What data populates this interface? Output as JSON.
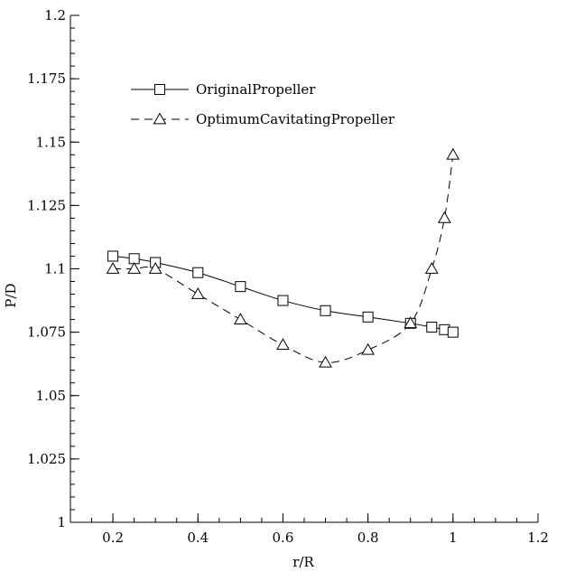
{
  "chart_data": {
    "type": "line",
    "title": "",
    "xlabel": "r/R",
    "ylabel": "P/D",
    "xlim": [
      0.1,
      1.2
    ],
    "ylim": [
      1.0,
      1.2
    ],
    "x_ticks": [
      "0.2",
      "0.4",
      "0.6",
      "0.8",
      "1",
      "1.2"
    ],
    "y_ticks": [
      "1",
      "1.025",
      "1.05",
      "1.075",
      "1.1",
      "1.125",
      "1.15",
      "1.175",
      "1.2"
    ],
    "grid": false,
    "legend_position": "top-left",
    "series": [
      {
        "name": "OriginalPropeller",
        "line_style": "solid",
        "marker": "square",
        "x": [
          0.2,
          0.25,
          0.3,
          0.4,
          0.5,
          0.6,
          0.7,
          0.8,
          0.9,
          0.95,
          0.98,
          1.0
        ],
        "y": [
          1.105,
          1.104,
          1.1025,
          1.0985,
          1.093,
          1.0875,
          1.0835,
          1.081,
          1.0785,
          1.077,
          1.076,
          1.075
        ]
      },
      {
        "name": "OptimumCavitatingPropeller",
        "line_style": "dashed",
        "marker": "triangle",
        "x": [
          0.2,
          0.25,
          0.3,
          0.4,
          0.5,
          0.6,
          0.7,
          0.8,
          0.9,
          0.95,
          0.98,
          1.0
        ],
        "y": [
          1.1,
          1.1,
          1.1,
          1.09,
          1.08,
          1.07,
          1.063,
          1.068,
          1.0785,
          1.1,
          1.12,
          1.145
        ]
      }
    ]
  }
}
